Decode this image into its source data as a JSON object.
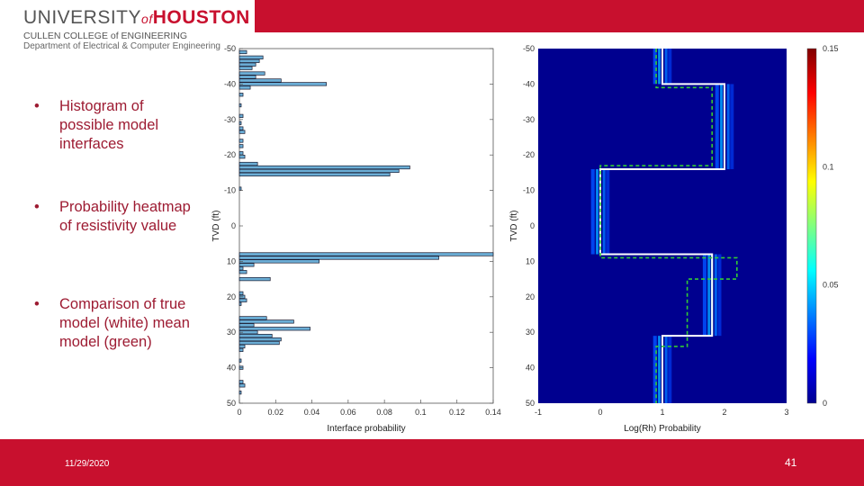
{
  "header": {
    "logo_university": "UNIVERSITY",
    "logo_of": "of",
    "logo_houston": "HOUSTON",
    "logo_college": "CULLEN COLLEGE of ENGINEERING",
    "logo_department": "Department of Electrical & Computer Engineering",
    "brand_color": "#c8102e"
  },
  "bullets": [
    {
      "text": "Histogram of possible model interfaces"
    },
    {
      "text": "Probability heatmap of resistivity value"
    },
    {
      "text": "Comparison of true model (white) mean model (green)"
    }
  ],
  "footer": {
    "date": "11/29/2020",
    "page": "41"
  },
  "chart_data": [
    {
      "type": "bar",
      "orientation": "horizontal",
      "xlabel": "Interface probability",
      "ylabel": "TVD (ft)",
      "xlim": [
        0,
        0.14
      ],
      "ylim": [
        -50,
        50
      ],
      "y_reversed": true,
      "xticks": [
        "0",
        "0.02",
        "0.04",
        "0.06",
        "0.08",
        "0.1",
        "0.12",
        "0.14"
      ],
      "yticks": [
        "-50",
        "-40",
        "-30",
        "-20",
        "-10",
        "0",
        "10",
        "20",
        "30",
        "40",
        "50"
      ],
      "bars": [
        {
          "y": -49,
          "value": 0.004
        },
        {
          "y": -47.5,
          "value": 0.013
        },
        {
          "y": -46.5,
          "value": 0.011
        },
        {
          "y": -45.5,
          "value": 0.009
        },
        {
          "y": -44.5,
          "value": 0.007
        },
        {
          "y": -43,
          "value": 0.014
        },
        {
          "y": -42,
          "value": 0.009
        },
        {
          "y": -41,
          "value": 0.023
        },
        {
          "y": -40,
          "value": 0.048
        },
        {
          "y": -39,
          "value": 0.006
        },
        {
          "y": -37,
          "value": 0.002
        },
        {
          "y": -34,
          "value": 0.001
        },
        {
          "y": -31,
          "value": 0.002
        },
        {
          "y": -29,
          "value": 0.001
        },
        {
          "y": -27.5,
          "value": 0.002
        },
        {
          "y": -26.5,
          "value": 0.003
        },
        {
          "y": -24,
          "value": 0.002
        },
        {
          "y": -22.5,
          "value": 0.002
        },
        {
          "y": -20.5,
          "value": 0.002
        },
        {
          "y": -19.5,
          "value": 0.003
        },
        {
          "y": -17.5,
          "value": 0.01
        },
        {
          "y": -16.5,
          "value": 0.094
        },
        {
          "y": -15.5,
          "value": 0.088
        },
        {
          "y": -14.5,
          "value": 0.083
        },
        {
          "y": -10.5,
          "value": 0.001
        },
        {
          "y": 8,
          "value": 0.14
        },
        {
          "y": 9,
          "value": 0.11
        },
        {
          "y": 10,
          "value": 0.044
        },
        {
          "y": 11,
          "value": 0.008
        },
        {
          "y": 12,
          "value": 0.002
        },
        {
          "y": 13,
          "value": 0.004
        },
        {
          "y": 15,
          "value": 0.017
        },
        {
          "y": 19,
          "value": 0.002
        },
        {
          "y": 20,
          "value": 0.003
        },
        {
          "y": 21,
          "value": 0.004
        },
        {
          "y": 22,
          "value": 0.001
        },
        {
          "y": 26,
          "value": 0.015
        },
        {
          "y": 27,
          "value": 0.03
        },
        {
          "y": 28,
          "value": 0.008
        },
        {
          "y": 29,
          "value": 0.039
        },
        {
          "y": 30,
          "value": 0.01
        },
        {
          "y": 31,
          "value": 0.018
        },
        {
          "y": 32,
          "value": 0.023
        },
        {
          "y": 33,
          "value": 0.022
        },
        {
          "y": 34,
          "value": 0.003
        },
        {
          "y": 35,
          "value": 0.002
        },
        {
          "y": 38,
          "value": 0.001
        },
        {
          "y": 40,
          "value": 0.002
        },
        {
          "y": 44,
          "value": 0.002
        },
        {
          "y": 45,
          "value": 0.003
        },
        {
          "y": 47,
          "value": 0.001
        }
      ],
      "bar_color": "#6baed6"
    },
    {
      "type": "heatmap",
      "xlabel": "Log(Rh) Probability",
      "ylabel": "TVD (ft)",
      "xlim": [
        -1,
        3
      ],
      "ylim": [
        -50,
        50
      ],
      "y_reversed": true,
      "xticks": [
        "-1",
        "0",
        "1",
        "2",
        "3"
      ],
      "yticks": [
        "-50",
        "-40",
        "-30",
        "-20",
        "-10",
        "0",
        "10",
        "20",
        "30",
        "40",
        "50"
      ],
      "colorbar": {
        "ticks": [
          "0",
          "0.05",
          "0.1",
          "0.15"
        ],
        "range": [
          0,
          0.15
        ],
        "colormap": "jet"
      },
      "true_model": {
        "color": "#ffffff",
        "depths": [
          -50,
          -40,
          -16,
          8,
          31,
          50
        ],
        "values": [
          1.0,
          2.0,
          0.0,
          1.8,
          1.0
        ]
      },
      "mean_model": {
        "color": "#33cc33",
        "style": "dashed",
        "points": [
          [
            0.9,
            -50
          ],
          [
            0.9,
            -39
          ],
          [
            1.8,
            -39
          ],
          [
            1.8,
            -17
          ],
          [
            0.0,
            -17
          ],
          [
            0.0,
            9
          ],
          [
            2.2,
            9
          ],
          [
            2.2,
            15
          ],
          [
            1.4,
            15
          ],
          [
            1.4,
            34
          ],
          [
            0.9,
            34
          ],
          [
            0.9,
            50
          ]
        ]
      }
    }
  ]
}
